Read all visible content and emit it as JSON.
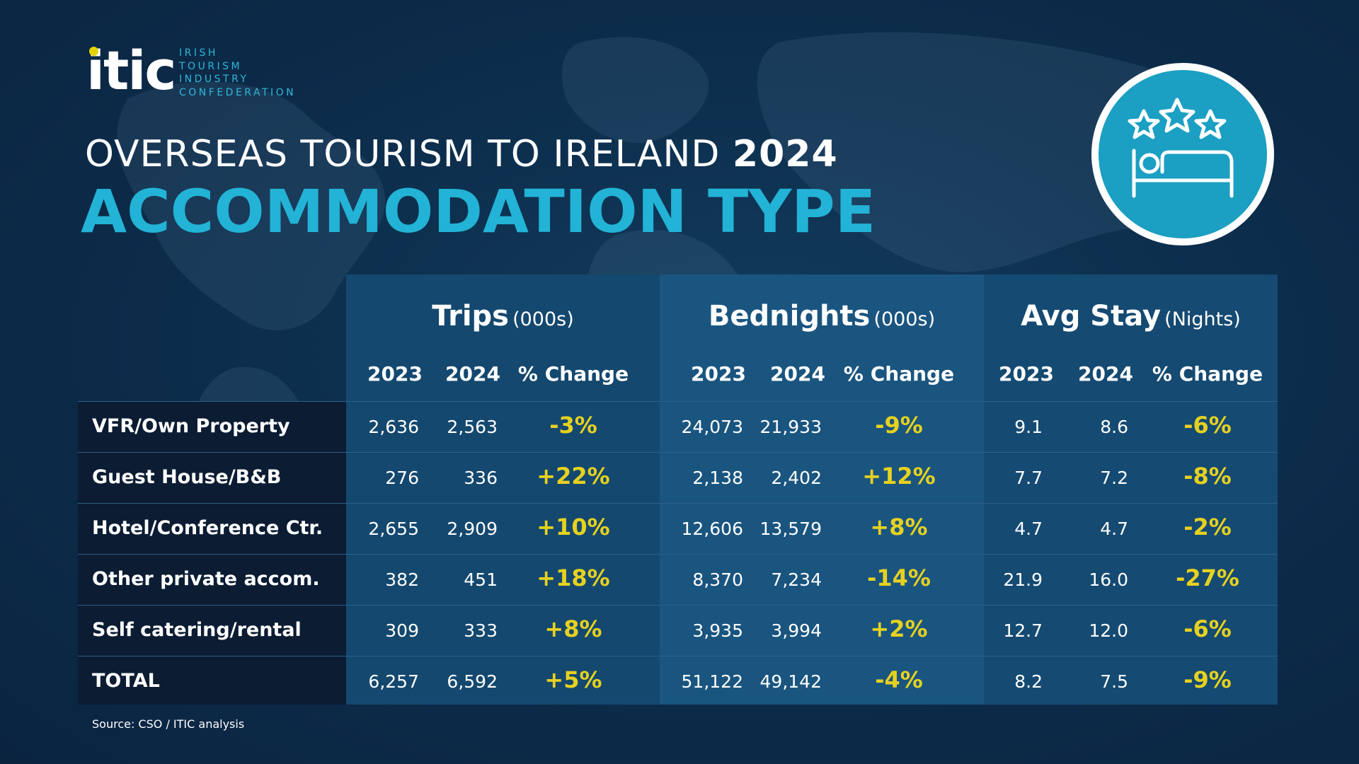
{
  "logo": {
    "word": "itic",
    "sub_lines": [
      "IRISH",
      "TOURISM",
      "INDUSTRY",
      "CONFEDERATION"
    ]
  },
  "title": {
    "line1": "OVERSEAS TOURISM TO IRELAND",
    "year": "2024",
    "line2": "ACCOMMODATION TYPE"
  },
  "badge": {
    "icon": "hotel-bed-stars-icon"
  },
  "colors": {
    "background": "#0d2e4d",
    "accent": "#22b3d6",
    "highlight": "#e6d11f"
  },
  "source": "Source: CSO / ITIC analysis",
  "chart_data": {
    "type": "table",
    "groups": [
      {
        "name": "Trips",
        "unit": "(000s)",
        "columns": [
          "2023",
          "2024",
          "% Change"
        ],
        "values": [
          [
            "2,636",
            "2,563",
            "-3%"
          ],
          [
            "276",
            "336",
            "+22%"
          ],
          [
            "2,655",
            "2,909",
            "+10%"
          ],
          [
            "382",
            "451",
            "+18%"
          ],
          [
            "309",
            "333",
            "+8%"
          ],
          [
            "6,257",
            "6,592",
            "+5%"
          ]
        ]
      },
      {
        "name": "Bednights",
        "unit": "(000s)",
        "columns": [
          "2023",
          "2024",
          "% Change"
        ],
        "values": [
          [
            "24,073",
            "21,933",
            "-9%"
          ],
          [
            "2,138",
            "2,402",
            "+12%"
          ],
          [
            "12,606",
            "13,579",
            "+8%"
          ],
          [
            "8,370",
            "7,234",
            "-14%"
          ],
          [
            "3,935",
            "3,994",
            "+2%"
          ],
          [
            "51,122",
            "49,142",
            "-4%"
          ]
        ]
      },
      {
        "name": "Avg Stay",
        "unit": "(Nights)",
        "columns": [
          "2023",
          "2024",
          "% Change"
        ],
        "values": [
          [
            "9.1",
            "8.6",
            "-6%"
          ],
          [
            "7.7",
            "7.2",
            "-8%"
          ],
          [
            "4.7",
            "4.7",
            "-2%"
          ],
          [
            "21.9",
            "16.0",
            "-27%"
          ],
          [
            "12.7",
            "12.0",
            "-6%"
          ],
          [
            "8.2",
            "7.5",
            "-9%"
          ]
        ]
      }
    ],
    "rows": [
      "VFR/Own Property",
      "Guest House/B&B",
      "Hotel/Conference Ctr.",
      "Other private accom.",
      "Self catering/rental",
      "TOTAL"
    ]
  }
}
